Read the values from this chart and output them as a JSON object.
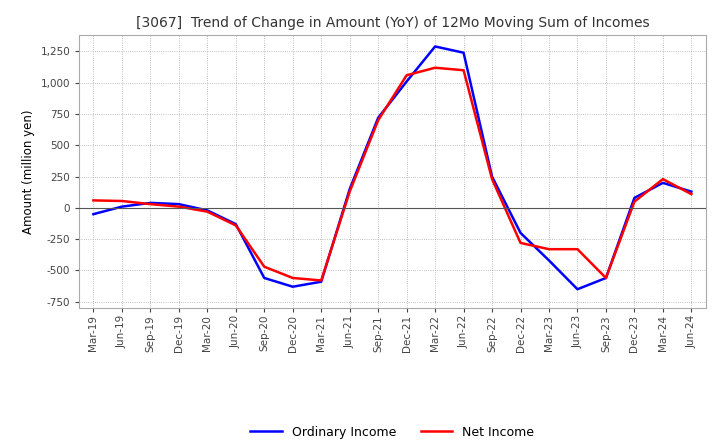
{
  "title": "[3067]  Trend of Change in Amount (YoY) of 12Mo Moving Sum of Incomes",
  "ylabel": "Amount (million yen)",
  "ylim": [
    -800,
    1380
  ],
  "yticks": [
    -750,
    -500,
    -250,
    0,
    250,
    500,
    750,
    1000,
    1250
  ],
  "x_labels": [
    "Mar-19",
    "Jun-19",
    "Sep-19",
    "Dec-19",
    "Mar-20",
    "Jun-20",
    "Sep-20",
    "Dec-20",
    "Mar-21",
    "Jun-21",
    "Sep-21",
    "Dec-21",
    "Mar-22",
    "Jun-22",
    "Sep-22",
    "Dec-22",
    "Mar-23",
    "Jun-23",
    "Sep-23",
    "Dec-23",
    "Mar-24",
    "Jun-24"
  ],
  "ordinary_income": [
    -50,
    10,
    40,
    30,
    -20,
    -130,
    -560,
    -630,
    -590,
    150,
    720,
    1010,
    1290,
    1240,
    250,
    -200,
    -420,
    -650,
    -560,
    80,
    200,
    130
  ],
  "net_income": [
    60,
    55,
    30,
    10,
    -30,
    -140,
    -470,
    -560,
    -580,
    130,
    700,
    1060,
    1120,
    1100,
    230,
    -280,
    -330,
    -330,
    -560,
    50,
    230,
    110
  ],
  "ordinary_income_color": "#0000ff",
  "net_income_color": "#ff0000",
  "line_width": 1.8,
  "legend_labels": [
    "Ordinary Income",
    "Net Income"
  ],
  "background_color": "#ffffff",
  "grid_color": "#aaaaaa"
}
